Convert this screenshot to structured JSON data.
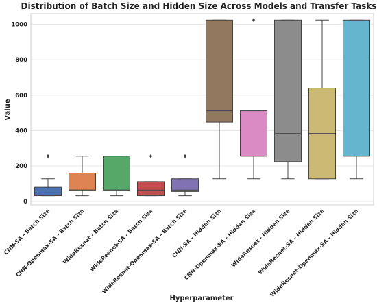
{
  "chart_data": {
    "type": "box",
    "title": "Distribution of Batch Size and Hidden Size Across Models and Transfer Tasks",
    "xlabel": "Hyperparameter",
    "ylabel": "Value",
    "ylim": [
      -20,
      1060
    ],
    "yticks": [
      0,
      200,
      400,
      600,
      800,
      1000
    ],
    "grid": true,
    "categories": [
      "CNN-SA - Batch Size",
      "CNN-Openmax-SA - Batch Size",
      "WideResnet - Batch Size",
      "WideResnet-SA - Batch Size",
      "WideResnet-Openmax-SA - Batch Size",
      "CNN-SA - Hidden Size",
      "CNN-Openmax-SA - Hidden Size",
      "WideResnet - Hidden Size",
      "WideResnet-SA - Hidden Size",
      "WideResnet-Openmax-SA - Hidden Size"
    ],
    "boxes": [
      {
        "color": "#4c72b0",
        "min": 32,
        "q1": 32,
        "median": 48,
        "q3": 80,
        "max": 128,
        "outliers": [
          256
        ]
      },
      {
        "color": "#dd8452",
        "min": 32,
        "q1": 64,
        "median": 64,
        "q3": 160,
        "max": 256,
        "outliers": []
      },
      {
        "color": "#55a868",
        "min": 32,
        "q1": 64,
        "median": 64,
        "q3": 256,
        "max": 256,
        "outliers": []
      },
      {
        "color": "#c44e52",
        "min": 32,
        "q1": 32,
        "median": 64,
        "q3": 112,
        "max": 112,
        "outliers": [
          256
        ]
      },
      {
        "color": "#8172b3",
        "min": 32,
        "q1": 56,
        "median": 64,
        "q3": 128,
        "max": 128,
        "outliers": [
          256
        ]
      },
      {
        "color": "#937860",
        "min": 128,
        "q1": 448,
        "median": 512,
        "q3": 1024,
        "max": 1024,
        "outliers": []
      },
      {
        "color": "#da8bc3",
        "min": 128,
        "q1": 256,
        "median": 256,
        "q3": 512,
        "max": 512,
        "outliers": [
          1024
        ]
      },
      {
        "color": "#8c8c8c",
        "min": 128,
        "q1": 224,
        "median": 384,
        "q3": 1024,
        "max": 1024,
        "outliers": []
      },
      {
        "color": "#ccb974",
        "min": 128,
        "q1": 128,
        "median": 384,
        "q3": 640,
        "max": 1024,
        "outliers": []
      },
      {
        "color": "#64b5cd",
        "min": 128,
        "q1": 256,
        "median": 256,
        "q3": 1024,
        "max": 1024,
        "outliers": []
      }
    ]
  }
}
